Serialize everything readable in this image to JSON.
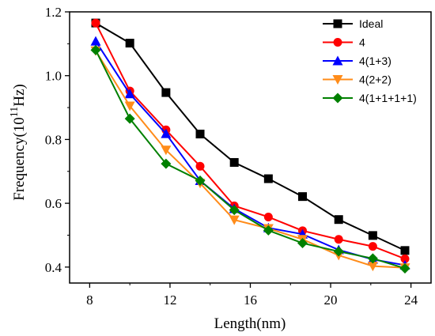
{
  "chart_data": {
    "type": "line",
    "xlabel": "Length(nm)",
    "ylabel_main": "Frequency(10",
    "ylabel_exp": "11",
    "ylabel_unit": "Hz)",
    "xlim": [
      7,
      25
    ],
    "ylim": [
      0.35,
      1.2
    ],
    "x_ticks": [
      8,
      12,
      16,
      20,
      24
    ],
    "y_ticks": [
      0.4,
      0.6,
      0.8,
      1.0,
      1.2
    ],
    "x_tick_labels": [
      "8",
      "12",
      "16",
      "20",
      "24"
    ],
    "y_tick_labels": [
      "0.4",
      "0.6",
      "0.8",
      "1.0",
      "1.2"
    ],
    "grid": false,
    "legend_position": "top-right",
    "x": [
      8.3,
      10.0,
      11.8,
      13.5,
      15.2,
      16.9,
      18.6,
      20.4,
      22.1,
      23.7
    ],
    "series": [
      {
        "name": "Ideal",
        "color": "#000000",
        "marker": "square",
        "values": [
          1.165,
          1.102,
          0.947,
          0.817,
          0.728,
          0.677,
          0.621,
          0.549,
          0.499,
          0.452
        ]
      },
      {
        "name": "4",
        "color": "#ff0000",
        "marker": "circle",
        "values": [
          1.165,
          0.952,
          0.83,
          0.716,
          0.592,
          0.557,
          0.514,
          0.487,
          0.465,
          0.426
        ]
      },
      {
        "name": "4(1+3)",
        "color": "#0000ff",
        "marker": "triangle-up",
        "values": [
          1.108,
          0.943,
          0.818,
          0.671,
          0.583,
          0.523,
          0.503,
          0.454,
          0.424,
          0.406
        ]
      },
      {
        "name": "4(2+2)",
        "color": "#ff8c1a",
        "marker": "triangle-down",
        "values": [
          1.078,
          0.905,
          0.767,
          0.663,
          0.548,
          0.521,
          0.487,
          0.437,
          0.403,
          0.398
        ]
      },
      {
        "name": "4(1+1+1+1)",
        "color": "#008000",
        "marker": "diamond",
        "values": [
          1.08,
          0.865,
          0.724,
          0.671,
          0.579,
          0.515,
          0.475,
          0.449,
          0.427,
          0.396
        ]
      }
    ]
  }
}
